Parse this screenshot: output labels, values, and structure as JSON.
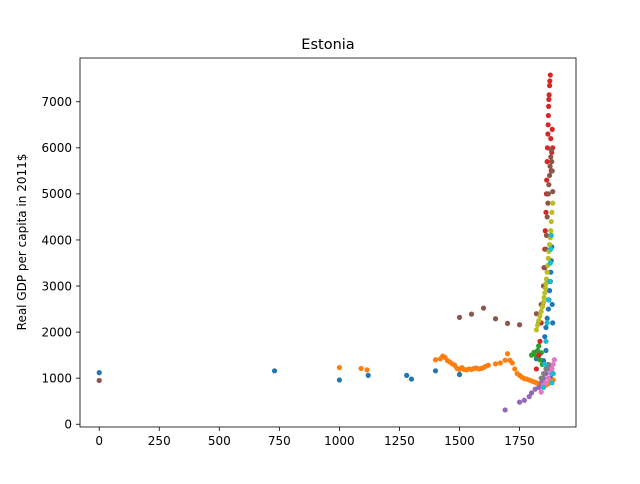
{
  "chart_data": {
    "type": "scatter",
    "title": "Estonia",
    "xlabel": "",
    "ylabel": "Real GDP per capita in 2011$",
    "xlim": [
      -80,
      1985
    ],
    "ylim": [
      -60,
      7950
    ],
    "x_ticks": [
      0,
      250,
      500,
      750,
      1000,
      1250,
      1500,
      1750
    ],
    "y_ticks": [
      0,
      1000,
      2000,
      3000,
      4000,
      5000,
      6000,
      7000
    ],
    "grid": false,
    "legend": "none",
    "series": [
      {
        "color": "#1f77b4",
        "points": [
          [
            0,
            1120
          ],
          [
            730,
            1160
          ],
          [
            1000,
            960
          ],
          [
            1120,
            1060
          ],
          [
            1280,
            1060
          ],
          [
            1300,
            980
          ],
          [
            1400,
            1160
          ],
          [
            1500,
            1080
          ],
          [
            1820,
            1420
          ],
          [
            1830,
            1700
          ],
          [
            1840,
            1550
          ],
          [
            1850,
            1380
          ],
          [
            1855,
            1900
          ],
          [
            1860,
            2100
          ],
          [
            1865,
            2300
          ],
          [
            1870,
            2500
          ],
          [
            1872,
            2700
          ],
          [
            1875,
            2900
          ],
          [
            1878,
            3100
          ],
          [
            1880,
            3300
          ],
          [
            1882,
            3550
          ],
          [
            1884,
            3850
          ],
          [
            1886,
            2600
          ],
          [
            1888,
            2200
          ],
          [
            1890,
            1100
          ],
          [
            1880,
            1000
          ],
          [
            1870,
            1250
          ],
          [
            1860,
            1600
          ]
        ]
      },
      {
        "color": "#ff7f0e",
        "points": [
          [
            1000,
            1230
          ],
          [
            1090,
            1210
          ],
          [
            1115,
            1180
          ],
          [
            1400,
            1400
          ],
          [
            1420,
            1420
          ],
          [
            1430,
            1480
          ],
          [
            1440,
            1450
          ],
          [
            1450,
            1380
          ],
          [
            1460,
            1350
          ],
          [
            1470,
            1310
          ],
          [
            1480,
            1280
          ],
          [
            1490,
            1210
          ],
          [
            1500,
            1190
          ],
          [
            1510,
            1230
          ],
          [
            1520,
            1190
          ],
          [
            1530,
            1180
          ],
          [
            1540,
            1200
          ],
          [
            1550,
            1190
          ],
          [
            1560,
            1210
          ],
          [
            1570,
            1220
          ],
          [
            1580,
            1200
          ],
          [
            1590,
            1210
          ],
          [
            1600,
            1230
          ],
          [
            1610,
            1260
          ],
          [
            1620,
            1280
          ],
          [
            1650,
            1310
          ],
          [
            1670,
            1330
          ],
          [
            1690,
            1390
          ],
          [
            1700,
            1530
          ],
          [
            1710,
            1390
          ],
          [
            1720,
            1330
          ],
          [
            1730,
            1200
          ],
          [
            1740,
            1100
          ],
          [
            1750,
            1060
          ],
          [
            1760,
            1020
          ],
          [
            1770,
            990
          ],
          [
            1780,
            980
          ],
          [
            1790,
            960
          ],
          [
            1800,
            940
          ],
          [
            1810,
            920
          ],
          [
            1820,
            900
          ],
          [
            1830,
            880
          ],
          [
            1840,
            860
          ],
          [
            1850,
            900
          ],
          [
            1860,
            850
          ],
          [
            1870,
            880
          ],
          [
            1880,
            920
          ],
          [
            1890,
            960
          ]
        ]
      },
      {
        "color": "#2ca02c",
        "points": [
          [
            1800,
            1500
          ],
          [
            1810,
            1560
          ],
          [
            1820,
            1480
          ],
          [
            1825,
            1600
          ],
          [
            1830,
            1700
          ],
          [
            1835,
            1400
          ],
          [
            1840,
            1550
          ],
          [
            1845,
            1300
          ]
        ]
      },
      {
        "color": "#d62728",
        "points": [
          [
            1820,
            1200
          ],
          [
            1830,
            1500
          ],
          [
            1835,
            1800
          ],
          [
            1840,
            2200
          ],
          [
            1845,
            2600
          ],
          [
            1850,
            3000
          ],
          [
            1852,
            3400
          ],
          [
            1855,
            3800
          ],
          [
            1857,
            4200
          ],
          [
            1860,
            4600
          ],
          [
            1862,
            5000
          ],
          [
            1863,
            5300
          ],
          [
            1865,
            5700
          ],
          [
            1866,
            6000
          ],
          [
            1868,
            6300
          ],
          [
            1869,
            6500
          ],
          [
            1870,
            6700
          ],
          [
            1871,
            6900
          ],
          [
            1872,
            7050
          ],
          [
            1873,
            7150
          ],
          [
            1875,
            7350
          ],
          [
            1876,
            7450
          ],
          [
            1878,
            7580
          ],
          [
            1880,
            6200
          ],
          [
            1882,
            5500
          ],
          [
            1884,
            5900
          ],
          [
            1886,
            6400
          ],
          [
            1888,
            6000
          ]
        ]
      },
      {
        "color": "#9467bd",
        "points": [
          [
            1690,
            310
          ],
          [
            1750,
            480
          ],
          [
            1770,
            520
          ],
          [
            1790,
            600
          ],
          [
            1800,
            680
          ],
          [
            1815,
            760
          ],
          [
            1830,
            800
          ],
          [
            1840,
            900
          ],
          [
            1850,
            1000
          ],
          [
            1860,
            1100
          ],
          [
            1870,
            1200
          ],
          [
            1880,
            1250
          ]
        ]
      },
      {
        "color": "#8c564b",
        "points": [
          [
            0,
            950
          ],
          [
            1500,
            2320
          ],
          [
            1550,
            2390
          ],
          [
            1600,
            2520
          ],
          [
            1650,
            2290
          ],
          [
            1700,
            2190
          ],
          [
            1750,
            2160
          ],
          [
            1820,
            2400
          ],
          [
            1830,
            2200
          ],
          [
            1840,
            2600
          ],
          [
            1850,
            3000
          ],
          [
            1855,
            3400
          ],
          [
            1860,
            3800
          ],
          [
            1862,
            4100
          ],
          [
            1865,
            4500
          ],
          [
            1868,
            4800
          ],
          [
            1870,
            5000
          ],
          [
            1872,
            5200
          ],
          [
            1875,
            5400
          ],
          [
            1877,
            5600
          ],
          [
            1880,
            5800
          ],
          [
            1882,
            5950
          ],
          [
            1884,
            5700
          ],
          [
            1886,
            5500
          ],
          [
            1888,
            5050
          ]
        ]
      },
      {
        "color": "#e377c2",
        "points": [
          [
            1840,
            700
          ],
          [
            1850,
            850
          ],
          [
            1860,
            900
          ],
          [
            1870,
            1000
          ],
          [
            1880,
            1100
          ],
          [
            1885,
            1200
          ],
          [
            1890,
            1300
          ],
          [
            1895,
            1400
          ]
        ]
      },
      {
        "color": "#7f7f7f",
        "points": [
          [
            1840,
            1000
          ],
          [
            1850,
            1100
          ],
          [
            1860,
            1200
          ],
          [
            1870,
            1300
          ]
        ]
      },
      {
        "color": "#bcbd22",
        "points": [
          [
            1820,
            2050
          ],
          [
            1825,
            2150
          ],
          [
            1830,
            2250
          ],
          [
            1835,
            2350
          ],
          [
            1840,
            2450
          ],
          [
            1845,
            2550
          ],
          [
            1850,
            2650
          ],
          [
            1852,
            2750
          ],
          [
            1855,
            2850
          ],
          [
            1858,
            2950
          ],
          [
            1860,
            3050
          ],
          [
            1862,
            3150
          ],
          [
            1865,
            3300
          ],
          [
            1868,
            3450
          ],
          [
            1870,
            3600
          ],
          [
            1872,
            3750
          ],
          [
            1875,
            3900
          ],
          [
            1878,
            4050
          ],
          [
            1880,
            4200
          ],
          [
            1882,
            4400
          ],
          [
            1885,
            4600
          ],
          [
            1888,
            4800
          ]
        ]
      },
      {
        "color": "#17becf",
        "points": [
          [
            1850,
            800
          ],
          [
            1855,
            1300
          ],
          [
            1860,
            1800
          ],
          [
            1865,
            2200
          ],
          [
            1870,
            2700
          ],
          [
            1875,
            3100
          ],
          [
            1878,
            3500
          ],
          [
            1880,
            3800
          ],
          [
            1882,
            4100
          ],
          [
            1885,
            900
          ],
          [
            1888,
            1100
          ]
        ]
      }
    ]
  }
}
